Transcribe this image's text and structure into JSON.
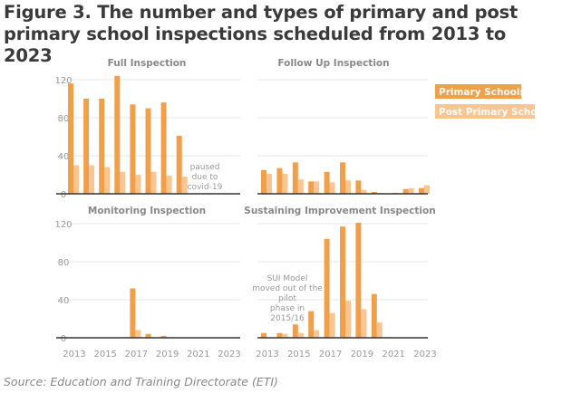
{
  "title": "Figure 3. The number and types of primary and post primary school inspections scheduled from 2013 to 2023",
  "source": "Source: Education and Training Directorate (ETI)",
  "colors": {
    "primary": "#f0a04b",
    "post_primary": "#fbc493",
    "grid": "#ececec",
    "axis": "#333333"
  },
  "legend": [
    "Primary Schools",
    "Post Primary Schools"
  ],
  "chart_data": [
    {
      "type": "bar",
      "title": "Full Inspection",
      "x": [
        2013,
        2014,
        2015,
        2016,
        2017,
        2018,
        2019,
        2020,
        2021,
        2022,
        2023
      ],
      "ylim": [
        0,
        120
      ],
      "yticks": [
        0,
        40,
        80,
        120
      ],
      "xticks": [],
      "series": [
        {
          "name": "Primary Schools",
          "values": [
            116,
            100,
            100,
            124,
            94,
            90,
            96,
            61,
            null,
            null,
            null
          ]
        },
        {
          "name": "Post Primary Schools",
          "values": [
            30,
            30,
            28,
            23,
            20,
            23,
            19,
            18,
            null,
            null,
            null
          ]
        }
      ],
      "annotation": [
        "paused",
        "due to",
        "covid-19"
      ]
    },
    {
      "type": "bar",
      "title": "Follow Up Inspection",
      "x": [
        2013,
        2014,
        2015,
        2016,
        2017,
        2018,
        2019,
        2020,
        2021,
        2022,
        2023
      ],
      "ylim": [
        0,
        120
      ],
      "yticks": [],
      "xticks": [],
      "series": [
        {
          "name": "Primary Schools",
          "values": [
            25,
            27,
            33,
            13,
            23,
            33,
            14,
            2,
            0,
            5,
            6
          ]
        },
        {
          "name": "Post Primary Schools",
          "values": [
            21,
            21,
            15,
            13,
            12,
            14,
            4,
            1,
            1,
            6,
            9
          ]
        }
      ],
      "annotation": []
    },
    {
      "type": "bar",
      "title": "Monitoring Inspection",
      "x": [
        2013,
        2014,
        2015,
        2016,
        2017,
        2018,
        2019,
        2020,
        2021,
        2022,
        2023
      ],
      "ylim": [
        0,
        120
      ],
      "yticks": [
        0,
        40,
        80,
        120
      ],
      "xticks": [
        2013,
        2015,
        2017,
        2019,
        2021,
        2023
      ],
      "series": [
        {
          "name": "Primary Schools",
          "values": [
            0,
            0,
            0,
            0,
            52,
            4,
            2,
            0,
            0,
            0,
            0
          ]
        },
        {
          "name": "Post Primary Schools",
          "values": [
            0,
            0,
            0,
            0,
            8,
            0,
            0,
            0,
            0,
            0,
            0
          ]
        }
      ],
      "annotation": []
    },
    {
      "type": "bar",
      "title": "Sustaining Improvement Inspection",
      "x": [
        2013,
        2014,
        2015,
        2016,
        2017,
        2018,
        2019,
        2020,
        2021,
        2022,
        2023
      ],
      "ylim": [
        0,
        120
      ],
      "yticks": [],
      "xticks": [
        2013,
        2015,
        2017,
        2019,
        2021,
        2023
      ],
      "series": [
        {
          "name": "Primary Schools",
          "values": [
            5,
            5,
            14,
            28,
            104,
            117,
            121,
            46,
            0,
            0,
            0
          ]
        },
        {
          "name": "Post Primary Schools",
          "values": [
            0,
            4,
            5,
            8,
            26,
            39,
            30,
            16,
            0,
            0,
            0
          ]
        }
      ],
      "annotation": [
        "SUI Model",
        "moved out of the",
        "pilot",
        "phase in",
        "2015/16"
      ]
    }
  ]
}
